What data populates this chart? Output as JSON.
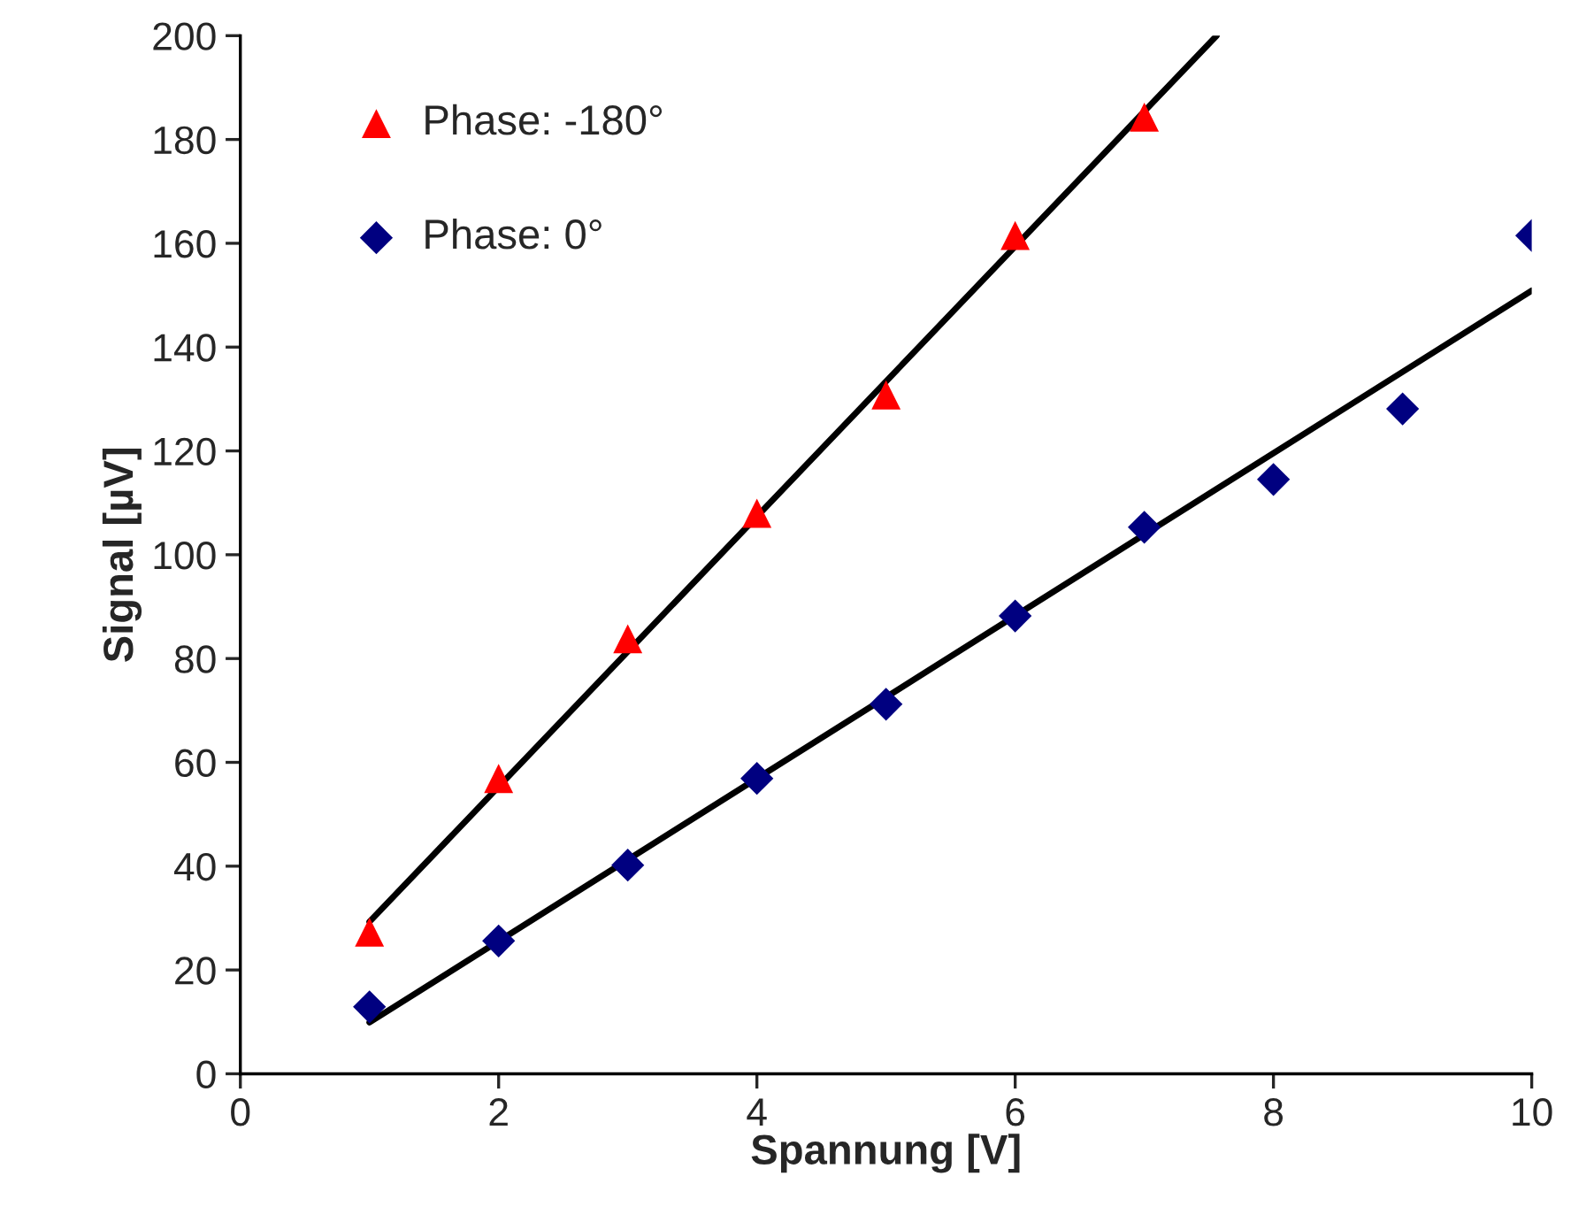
{
  "chart_data": {
    "type": "scatter",
    "xlabel": "Spannung [V]",
    "ylabel": "Signal [µV]",
    "xlim": [
      0,
      10
    ],
    "xticks": [
      0,
      2,
      4,
      6,
      8,
      10
    ],
    "ylim": [
      0,
      200
    ],
    "yticks": [
      0,
      20,
      40,
      60,
      80,
      100,
      120,
      140,
      160,
      180,
      200
    ],
    "grid": false,
    "legend": "top left",
    "series": [
      {
        "name": "Phase: -180°",
        "marker": "triangle",
        "color": "#ff0000",
        "x": [
          1,
          2,
          3,
          4,
          5,
          6,
          7
        ],
        "values": [
          27.3,
          56.9,
          83.8,
          108,
          130.8,
          161.5,
          184.3
        ]
      },
      {
        "name": "Phase: 0°",
        "marker": "diamond",
        "color": "#000080",
        "x": [
          1,
          2,
          3,
          4,
          5,
          6,
          7,
          8,
          9,
          10
        ],
        "values": [
          12.9,
          25.6,
          40.2,
          56.9,
          71.2,
          88.2,
          105.3,
          114.5,
          128.1,
          161.5
        ]
      },
      {
        "type": "line",
        "marker": "none",
        "line_style": "solid",
        "color": "#000000",
        "x": [
          1,
          7.56
        ],
        "values": [
          29.3,
          200
        ]
      },
      {
        "type": "line",
        "marker": "none",
        "line_style": "solid",
        "color": "#000000",
        "x": [
          1,
          10
        ],
        "values": [
          9.9,
          150.9
        ]
      }
    ]
  }
}
